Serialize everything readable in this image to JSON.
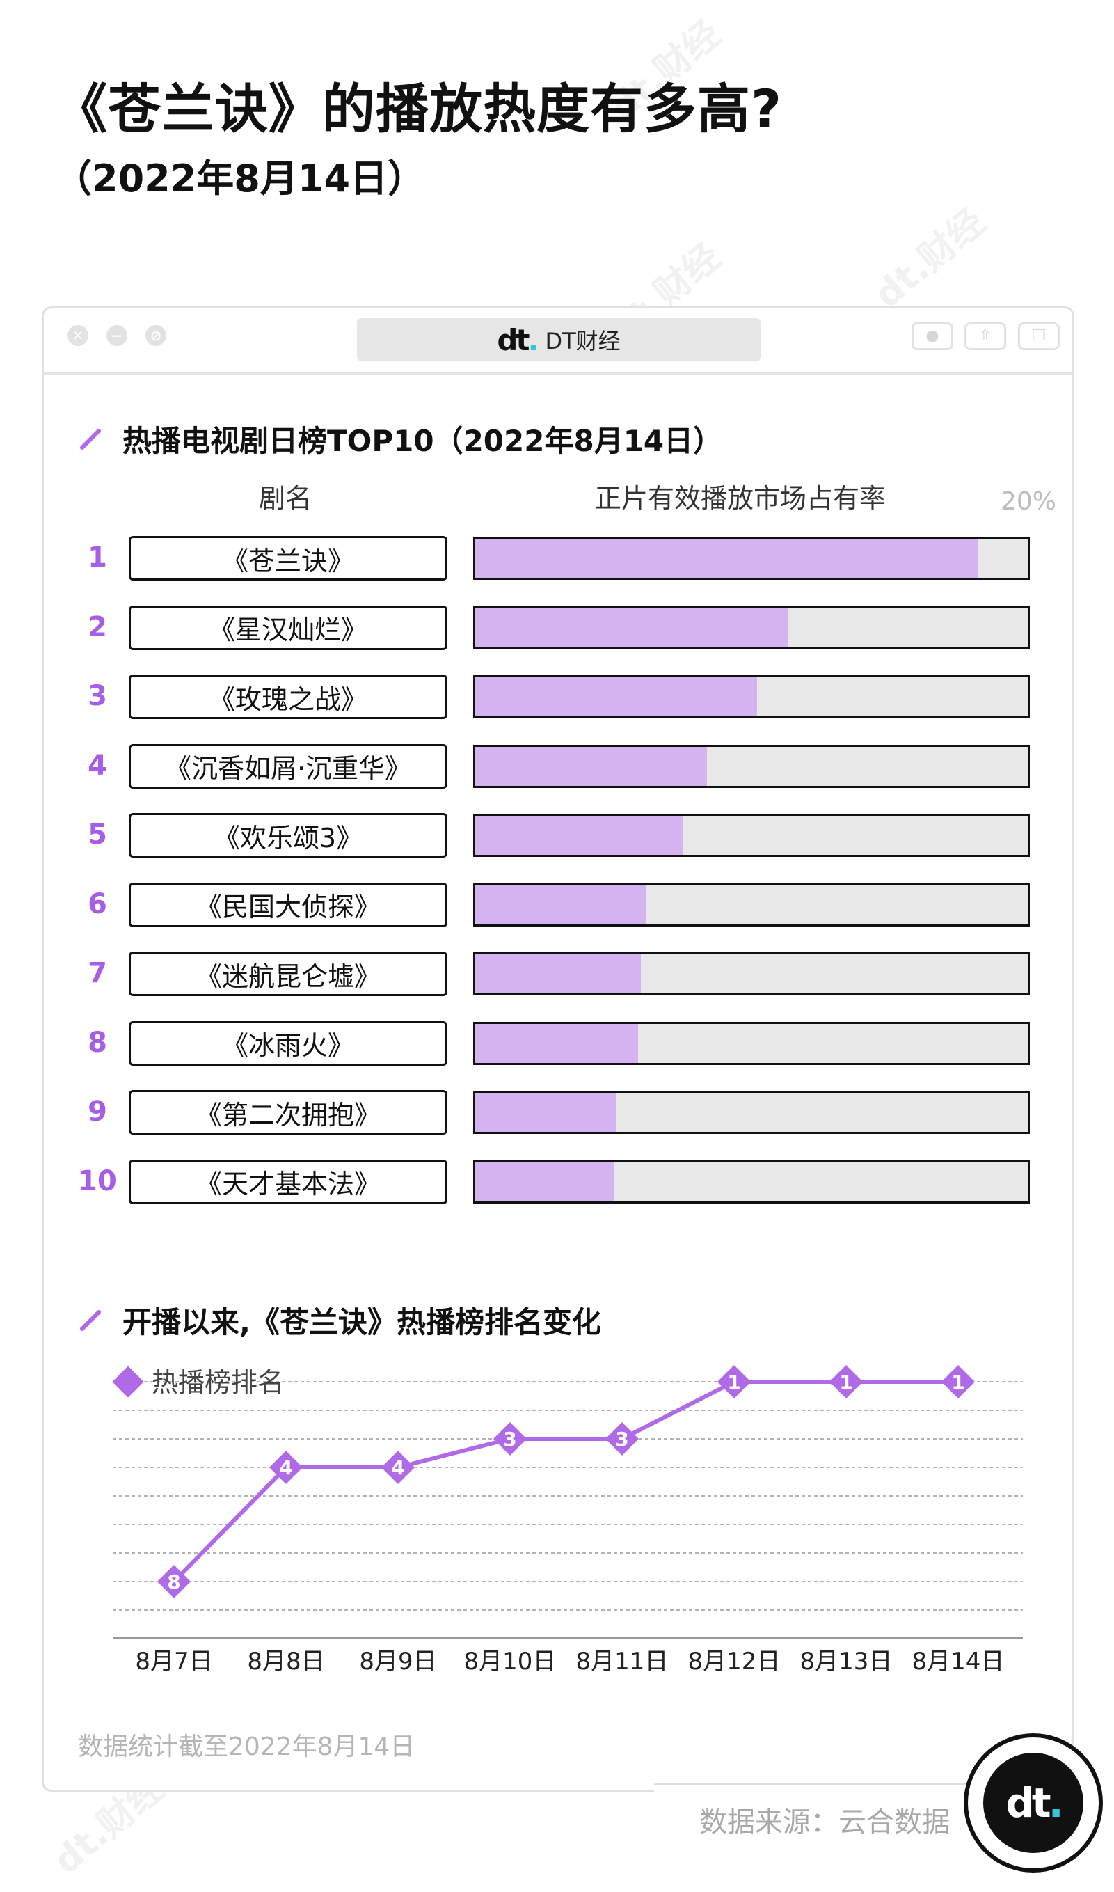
{
  "title": "《苍兰诀》的播放热度有多高?",
  "subtitle": "（2022年8月14日）",
  "brand": {
    "name": "DT财经",
    "accent": "#36c5d6"
  },
  "window": {
    "close_icon": "✕",
    "min_icon": "−",
    "max_icon": "⊘"
  },
  "bar_section": {
    "title": "热播电视剧日榜TOP10（2022年8月14日）",
    "col_name": "剧名",
    "col_metric": "正片有效播放市场占有率",
    "scale_max_label": "20%"
  },
  "line_section": {
    "title": "开播以来,《苍兰诀》热播榜排名变化",
    "legend": "热播榜排名"
  },
  "footnote": "数据统计截至2022年8月14日",
  "source": "数据来源：云合数据",
  "colors": {
    "bar_fill": "#d5b3f1",
    "bar_track": "#e8e8e8",
    "accent": "#a65ee6",
    "line": "#b06ae8"
  },
  "chart_data": [
    {
      "type": "bar",
      "orientation": "horizontal",
      "title": "热播电视剧日榜TOP10（2022年8月14日）",
      "xlabel": "正片有效播放市场占有率",
      "ylabel": "剧名",
      "xlim": [
        0,
        20
      ],
      "unit": "%",
      "ranks": [
        1,
        2,
        3,
        4,
        5,
        6,
        7,
        8,
        9,
        10
      ],
      "categories": [
        "《苍兰诀》",
        "《星汉灿烂》",
        "《玫瑰之战》",
        "《沉香如屑·沉重华》",
        "《欢乐颂3》",
        "《民国大侦探》",
        "《迷航昆仑墟》",
        "《冰雨火》",
        "《第二次拥抱》",
        "《天才基本法》"
      ],
      "values": [
        18.2,
        11.3,
        10.2,
        8.4,
        7.5,
        6.2,
        6.0,
        5.9,
        5.1,
        5.0
      ]
    },
    {
      "type": "line",
      "title": "开播以来,《苍兰诀》热播榜排名变化",
      "x": [
        "8月7日",
        "8月8日",
        "8月9日",
        "8月10日",
        "8月11日",
        "8月12日",
        "8月13日",
        "8月14日"
      ],
      "series": [
        {
          "name": "热播榜排名",
          "values": [
            8,
            4,
            4,
            3,
            3,
            1,
            1,
            1
          ]
        }
      ],
      "ylim": [
        1,
        9
      ],
      "y_inverted": true,
      "grid": true
    }
  ]
}
